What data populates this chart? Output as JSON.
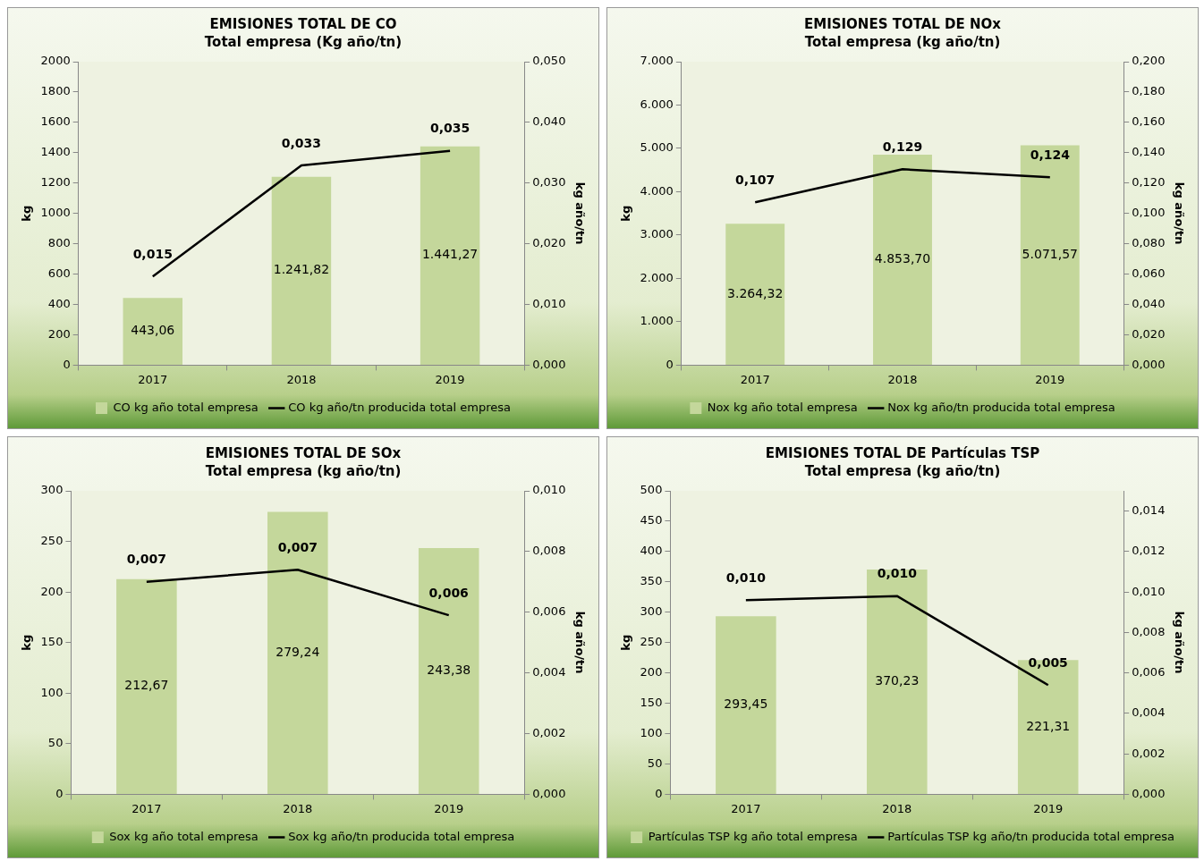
{
  "chart_data": [
    {
      "type": "bar",
      "title": "EMISIONES TOTAL DE CO",
      "subtitle": "Total empresa (Kg año/tn)",
      "ylabel": "kg",
      "y2label": "kg año/tn",
      "categories": [
        "2017",
        "2018",
        "2019"
      ],
      "legend": "bottom",
      "ylim": [
        0,
        2000
      ],
      "yticks": [
        0,
        200,
        400,
        600,
        800,
        1000,
        1200,
        1400,
        1600,
        1800,
        2000
      ],
      "y2lim": [
        0,
        0.05
      ],
      "y2ticks": [
        {
          "value": 0,
          "label": "0,000"
        },
        {
          "value": 0.01,
          "label": "0,010"
        },
        {
          "value": 0.02,
          "label": "0,020"
        },
        {
          "value": 0.03,
          "label": "0,030"
        },
        {
          "value": 0.04,
          "label": "0,040"
        },
        {
          "value": 0.05,
          "label": "0,050"
        }
      ],
      "series": [
        {
          "name": "CO kg año total empresa",
          "color": "#c4d79b",
          "values": [
            443.06,
            1241.82,
            1441.27
          ],
          "value_labels": [
            "443,06",
            "1.241,82",
            "1.441,27"
          ]
        },
        {
          "name": "CO kg año/tn producida total empresa",
          "type": "line",
          "axis": "y2",
          "color": "#000000",
          "values": [
            0.0146,
            0.0329,
            0.0353
          ],
          "value_labels": [
            "0,015",
            "0,033",
            "0,035"
          ]
        }
      ]
    },
    {
      "type": "bar",
      "title": "EMISIONES TOTAL DE NOx",
      "subtitle": "Total empresa (kg año/tn)",
      "ylabel": "kg",
      "y2label": "kg año/tn",
      "categories": [
        "2017",
        "2018",
        "2019"
      ],
      "legend": "bottom",
      "ylim": [
        0,
        7000
      ],
      "yticks": [
        0,
        {
          "value": 1000,
          "label": "1.000"
        },
        {
          "value": 2000,
          "label": "2.000"
        },
        {
          "value": 3000,
          "label": "3.000"
        },
        {
          "value": 4000,
          "label": "4.000"
        },
        {
          "value": 5000,
          "label": "5.000"
        },
        {
          "value": 6000,
          "label": "6.000"
        },
        {
          "value": 7000,
          "label": "7.000"
        }
      ],
      "y2lim": [
        0,
        0.2
      ],
      "y2ticks": [
        {
          "value": 0,
          "label": "0,000"
        },
        {
          "value": 0.02,
          "label": "0,020"
        },
        {
          "value": 0.04,
          "label": "0,040"
        },
        {
          "value": 0.06,
          "label": "0,060"
        },
        {
          "value": 0.08,
          "label": "0,080"
        },
        {
          "value": 0.1,
          "label": "0,100"
        },
        {
          "value": 0.12,
          "label": "0,120"
        },
        {
          "value": 0.14,
          "label": "0,140"
        },
        {
          "value": 0.16,
          "label": "0,160"
        },
        {
          "value": 0.18,
          "label": "0,180"
        },
        {
          "value": 0.2,
          "label": "0,200"
        }
      ],
      "series": [
        {
          "name": "Nox kg año total empresa",
          "color": "#c4d79b",
          "values": [
            3264.32,
            4853.7,
            5071.57
          ],
          "value_labels": [
            "3.264,32",
            "4.853,70",
            "5.071,57"
          ]
        },
        {
          "name": "Nox kg año/tn producida total empresa",
          "type": "line",
          "axis": "y2",
          "color": "#000000",
          "values": [
            0.1073,
            0.1291,
            0.1238
          ],
          "value_labels": [
            "0,107",
            "0,129",
            "0,124"
          ]
        }
      ]
    },
    {
      "type": "bar",
      "title": "EMISIONES TOTAL DE SOx",
      "subtitle": "Total empresa (kg año/tn)",
      "ylabel": "kg",
      "y2label": "kg año/tn",
      "categories": [
        "2017",
        "2018",
        "2019"
      ],
      "legend": "bottom",
      "ylim": [
        0,
        300
      ],
      "yticks": [
        0,
        50,
        100,
        150,
        200,
        250,
        300
      ],
      "y2lim": [
        0,
        0.01
      ],
      "y2ticks": [
        {
          "value": 0,
          "label": "0,000"
        },
        {
          "value": 0.002,
          "label": "0,002"
        },
        {
          "value": 0.004,
          "label": "0,004"
        },
        {
          "value": 0.006,
          "label": "0,006"
        },
        {
          "value": 0.008,
          "label": "0,008"
        },
        {
          "value": 0.01,
          "label": "0,010"
        }
      ],
      "series": [
        {
          "name": "Sox kg año total empresa",
          "color": "#c4d79b",
          "values": [
            212.67,
            279.24,
            243.38
          ],
          "value_labels": [
            "212,67",
            "279,24",
            "243,38"
          ]
        },
        {
          "name": "Sox kg año/tn producida total empresa",
          "type": "line",
          "axis": "y2",
          "color": "#000000",
          "values": [
            0.007,
            0.0074,
            0.0059
          ],
          "value_labels": [
            "0,007",
            "0,007",
            "0,006"
          ]
        }
      ]
    },
    {
      "type": "bar",
      "title": "EMISIONES TOTAL DE Partículas TSP",
      "subtitle": "Total empresa (kg año/tn)",
      "ylabel": "kg",
      "y2label": "kg año/tn",
      "categories": [
        "2017",
        "2018",
        "2019"
      ],
      "legend": "bottom",
      "ylim": [
        0,
        500
      ],
      "yticks": [
        0,
        50,
        100,
        150,
        200,
        250,
        300,
        350,
        400,
        450,
        500
      ],
      "y2lim": [
        0,
        0.015
      ],
      "y2ticks": [
        {
          "value": 0,
          "label": "0,000"
        },
        {
          "value": 0.002,
          "label": "0,002"
        },
        {
          "value": 0.004,
          "label": "0,004"
        },
        {
          "value": 0.006,
          "label": "0,006"
        },
        {
          "value": 0.008,
          "label": "0,008"
        },
        {
          "value": 0.01,
          "label": "0,010"
        },
        {
          "value": 0.012,
          "label": "0,012"
        },
        {
          "value": 0.014,
          "label": "0,014"
        }
      ],
      "series": [
        {
          "name": "Partículas TSP kg año total empresa",
          "color": "#c4d79b",
          "values": [
            293.45,
            370.23,
            221.31
          ],
          "value_labels": [
            "293,45",
            "370,23",
            "221,31"
          ]
        },
        {
          "name": "Partículas TSP kg año/tn producida total empresa",
          "type": "line",
          "axis": "y2",
          "color": "#000000",
          "values": [
            0.0096,
            0.0098,
            0.0054
          ],
          "value_labels": [
            "0,010",
            "0,010",
            "0,005"
          ]
        }
      ]
    }
  ]
}
